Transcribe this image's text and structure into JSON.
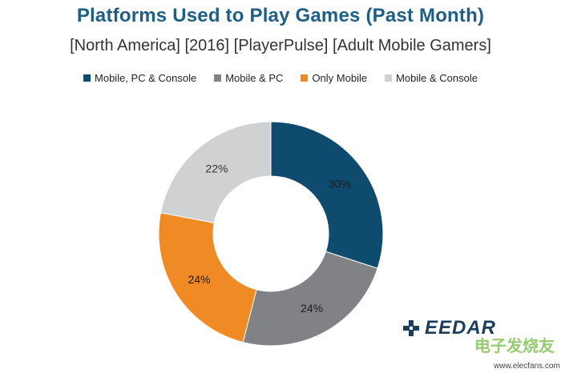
{
  "chart_data": {
    "type": "pie",
    "variant": "donut",
    "title": "Platforms Used to Play Games (Past Month)",
    "subtitle": "[North America] [2016] [PlayerPulse] [Adult Mobile Gamers]",
    "legend_position": "top",
    "series": [
      {
        "name": "Mobile, PC & Console",
        "value": 30,
        "label": "30%",
        "color": "#0f4b6e"
      },
      {
        "name": "Mobile & PC",
        "value": 24,
        "label": "24%",
        "color": "#808285"
      },
      {
        "name": "Only Mobile",
        "value": 24,
        "label": "24%",
        "color": "#f08a24"
      },
      {
        "name": "Mobile & Console",
        "value": 22,
        "label": "22%",
        "color": "#d0d1d3"
      }
    ]
  },
  "branding": {
    "logo_text": "EEDAR",
    "watermark_text": "电子发烧友",
    "watermark_url": "www.elecfans.com"
  }
}
